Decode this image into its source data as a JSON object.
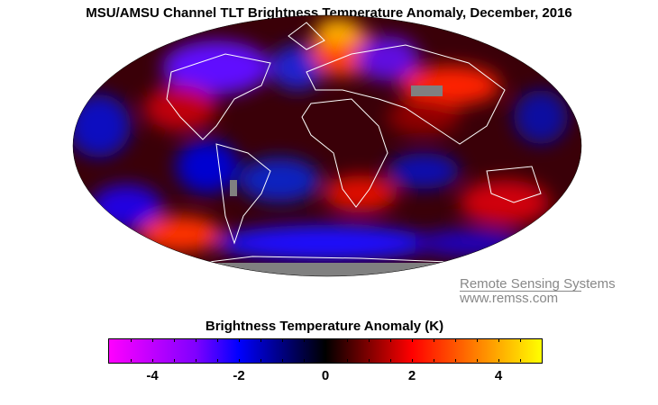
{
  "title": "MSU/AMSU Channel TLT Brightness Temperature Anomaly, December, 2016",
  "logo": {
    "line1": "Remote Sensing Systems",
    "line2": "www.remss.com"
  },
  "colorbar": {
    "title": "Brightness Temperature Anomaly (K)",
    "range": [
      -5,
      5
    ],
    "tick_labels": [
      "-4",
      "-2",
      "0",
      "2",
      "4"
    ],
    "tick_values": [
      -4,
      -2,
      0,
      2,
      4
    ],
    "colors": [
      "#ff00ff",
      "#8000ff",
      "#0000ff",
      "#000000",
      "#ff0000",
      "#ff8000",
      "#ffff00"
    ]
  },
  "map": {
    "projection": "mollweide",
    "missing_color": "#808080"
  }
}
